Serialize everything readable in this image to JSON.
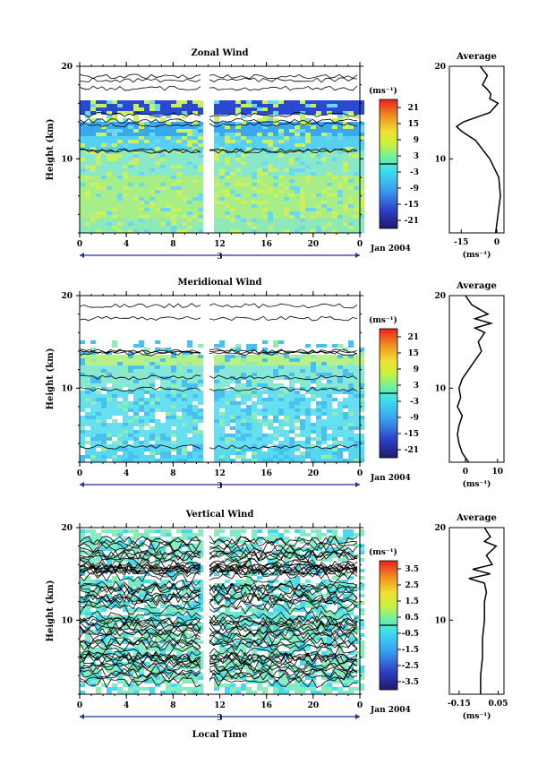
{
  "chart_data": [
    {
      "type": "heatmap",
      "title": "Zonal Wind",
      "ylabel": "Height (km)",
      "ylim": [
        2,
        20
      ],
      "y_ticks": [
        "20",
        "10"
      ],
      "x_ticks": [
        "0",
        "4",
        "8",
        "12",
        "16",
        "20",
        "0"
      ],
      "date_marker": "3",
      "date_label": "Jan 2004",
      "colorbar": {
        "unit_label": "(ms⁻¹)",
        "ticks": [
          "21",
          "15",
          "9",
          "3",
          "-3",
          "-9",
          "-15",
          "-21"
        ],
        "zero_line_value": 0
      },
      "profile": {
        "title": "Average",
        "xlabel": "(ms⁻¹)",
        "x_ticks": [
          "-15",
          "0"
        ],
        "xlim": [
          -20,
          3
        ],
        "y_ticks": [
          "20",
          "10"
        ],
        "heights": [
          2,
          4,
          6,
          8,
          10,
          12,
          13,
          13.5,
          14,
          15,
          16,
          16.5,
          17,
          17.5,
          18,
          19,
          20
        ],
        "values": [
          -0.5,
          0.5,
          1.5,
          0.8,
          -3,
          -9,
          -15,
          -17,
          -14,
          -3,
          0.5,
          -3,
          -2.5,
          -4,
          -6,
          -4,
          -7
        ]
      }
    },
    {
      "type": "heatmap",
      "title": "Meridional Wind",
      "ylabel": "Height (km)",
      "ylim": [
        2,
        20
      ],
      "y_ticks": [
        "20",
        "10"
      ],
      "x_ticks": [
        "0",
        "4",
        "8",
        "12",
        "16",
        "20",
        "0"
      ],
      "date_marker": "3",
      "date_label": "Jan 2004",
      "colorbar": {
        "unit_label": "(ms⁻¹)",
        "ticks": [
          "21",
          "15",
          "9",
          "3",
          "-3",
          "-9",
          "-15",
          "-21"
        ],
        "zero_line_value": 0
      },
      "profile": {
        "title": "Average",
        "xlabel": "(ms⁻¹)",
        "x_ticks": [
          "0",
          "10"
        ],
        "xlim": [
          -5,
          12
        ],
        "y_ticks": [
          "20",
          "10"
        ],
        "heights": [
          2,
          3,
          4,
          5,
          6,
          7,
          8,
          9,
          10,
          11,
          12,
          13,
          14,
          15,
          16,
          16.5,
          17,
          17.5,
          18,
          19,
          20
        ],
        "values": [
          1,
          -1,
          -2,
          -2.5,
          -2,
          -1,
          -2.5,
          -1.5,
          -2,
          -1,
          1,
          3,
          5,
          4,
          6,
          3,
          8,
          3,
          7,
          2,
          0
        ]
      }
    },
    {
      "type": "heatmap",
      "title": "Vertical Wind",
      "ylabel": "Height (km)",
      "ylim": [
        2,
        20
      ],
      "y_ticks": [
        "20",
        "10"
      ],
      "x_ticks": [
        "0",
        "4",
        "8",
        "12",
        "16",
        "20",
        "0"
      ],
      "date_marker": "3",
      "date_label": "Jan 2004",
      "xlabel": "Local Time",
      "colorbar": {
        "unit_label": "(ms⁻¹)",
        "ticks": [
          "3.5",
          "2.5",
          "1.5",
          "0.5",
          "-0.5",
          "-1.5",
          "-2.5",
          "-3.5"
        ],
        "zero_line_value": 0
      },
      "profile": {
        "title": "Average",
        "xlabel": "(ms⁻¹)",
        "x_ticks": [
          "-0.15",
          "0.05"
        ],
        "xlim": [
          -0.2,
          0.08
        ],
        "y_ticks": [
          "20",
          "10"
        ],
        "heights": [
          2,
          4,
          6,
          8,
          10,
          12,
          13,
          14,
          14.5,
          15,
          15.5,
          16,
          17,
          18,
          18.5,
          19,
          20
        ],
        "values": [
          -0.04,
          -0.04,
          -0.03,
          -0.03,
          -0.02,
          -0.02,
          -0.01,
          -0.02,
          -0.1,
          0.01,
          -0.08,
          0.02,
          -0.01,
          0.04,
          -0.02,
          0.01,
          -0.02
        ]
      }
    }
  ]
}
